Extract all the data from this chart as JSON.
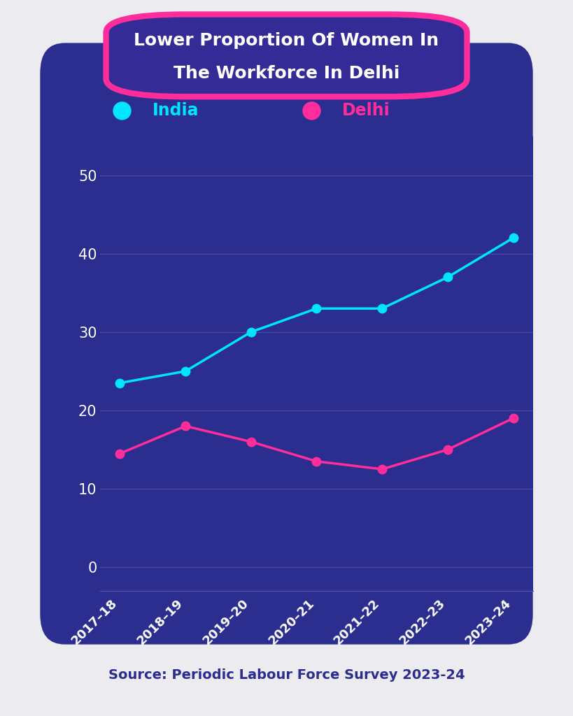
{
  "title_line1": "Lower Proportion Of Women In",
  "title_line2": "The Workforce In Delhi",
  "source_text": "Source: Periodic Labour Force Survey 2023-24",
  "categories": [
    "2017–18",
    "2018–19",
    "2019–20",
    "2020–21",
    "2021–22",
    "2022–23",
    "2023–24"
  ],
  "india_values": [
    23.5,
    25.0,
    30.0,
    33.0,
    33.0,
    37.0,
    42.0
  ],
  "delhi_values": [
    14.5,
    18.0,
    16.0,
    13.5,
    12.5,
    15.0,
    19.0
  ],
  "india_color": "#00E5FF",
  "delhi_color": "#FF2D9B",
  "bg_color": "#2B2D8F",
  "outer_bg": "#EBEBF0",
  "title_bg": "#342B96",
  "title_border": "#FF2D9B",
  "title_text_color": "#FFFFFF",
  "tick_label_color": "#FFFFFF",
  "grid_color": "#5555AA",
  "source_color": "#2B2D8F",
  "ylim_min": -3,
  "ylim_max": 55,
  "yticks": [
    0,
    10,
    20,
    30,
    40,
    50
  ],
  "line_width": 2.5,
  "marker_size": 10
}
